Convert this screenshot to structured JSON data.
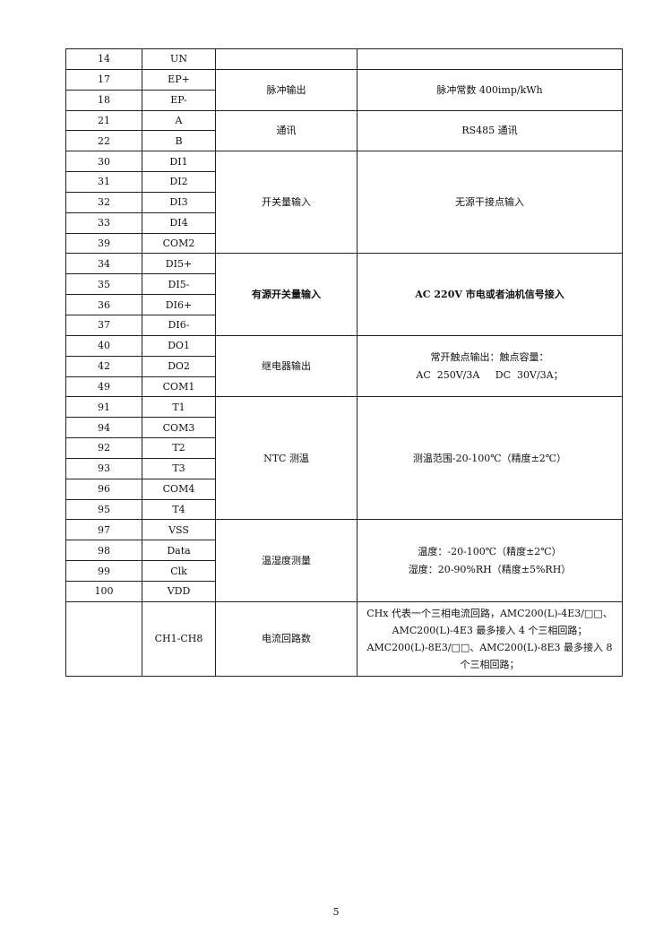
{
  "rows": [
    {
      "pin": "14",
      "name": "UN"
    },
    {
      "pin": "17",
      "name": "EP+"
    },
    {
      "pin": "18",
      "name": "EP-"
    },
    {
      "pin": "21",
      "name": "A"
    },
    {
      "pin": "22",
      "name": "B"
    },
    {
      "pin": "30",
      "name": "DI1"
    },
    {
      "pin": "31",
      "name": "DI2"
    },
    {
      "pin": "32",
      "name": "DI3"
    },
    {
      "pin": "33",
      "name": "DI4"
    },
    {
      "pin": "39",
      "name": "COM2"
    },
    {
      "pin": "34",
      "name": "DI5+"
    },
    {
      "pin": "35",
      "name": "DI5-"
    },
    {
      "pin": "36",
      "name": "DI6+"
    },
    {
      "pin": "37",
      "name": "DI6-"
    },
    {
      "pin": "40",
      "name": "DO1"
    },
    {
      "pin": "42",
      "name": "DO2"
    },
    {
      "pin": "49",
      "name": "COM1"
    },
    {
      "pin": "91",
      "name": "T1"
    },
    {
      "pin": "94",
      "name": "COM3"
    },
    {
      "pin": "92",
      "name": "T2"
    },
    {
      "pin": "93",
      "name": "T3"
    },
    {
      "pin": "96",
      "name": "COM4"
    },
    {
      "pin": "95",
      "name": "T4"
    },
    {
      "pin": "97",
      "name": "VSS"
    },
    {
      "pin": "98",
      "name": "Data"
    },
    {
      "pin": "99",
      "name": "Clk"
    },
    {
      "pin": "100",
      "name": "VDD"
    },
    {
      "pin": "",
      "name": "CH1-CH8"
    }
  ],
  "groups": {
    "pulse": {
      "function": "脉冲输出",
      "desc": "脉冲常数 400imp/kWh"
    },
    "comm": {
      "function": "通讯",
      "desc": "RS485 通讯"
    },
    "di": {
      "function": "开关量输入",
      "desc": "无源干接点输入"
    },
    "active_di": {
      "function": "有源开关量输入",
      "desc": "AC 220V 市电或者油机信号接入"
    },
    "relay": {
      "function": "继电器输出",
      "desc_line1": "常开触点输出：触点容量：",
      "desc_line2": "AC  250V/3A     DC  30V/3A；"
    },
    "ntc": {
      "function": "NTC 测温",
      "desc": "测温范围-20-100℃（精度±2℃）"
    },
    "th": {
      "function": "温湿度测量",
      "desc_line1": "温度：-20-100℃（精度±2℃）",
      "desc_line2": "湿度：20-90%RH（精度±5%RH）"
    },
    "current": {
      "function": "电流回路数",
      "desc": "CHx 代表一个三相电流回路，AMC200(L)-4E3/□□、AMC200(L)-4E3 最多接入 4 个三相回路；AMC200(L)-8E3/□□、AMC200(L)-8E3 最多接入 8 个三相回路；"
    }
  },
  "page_number": "5"
}
